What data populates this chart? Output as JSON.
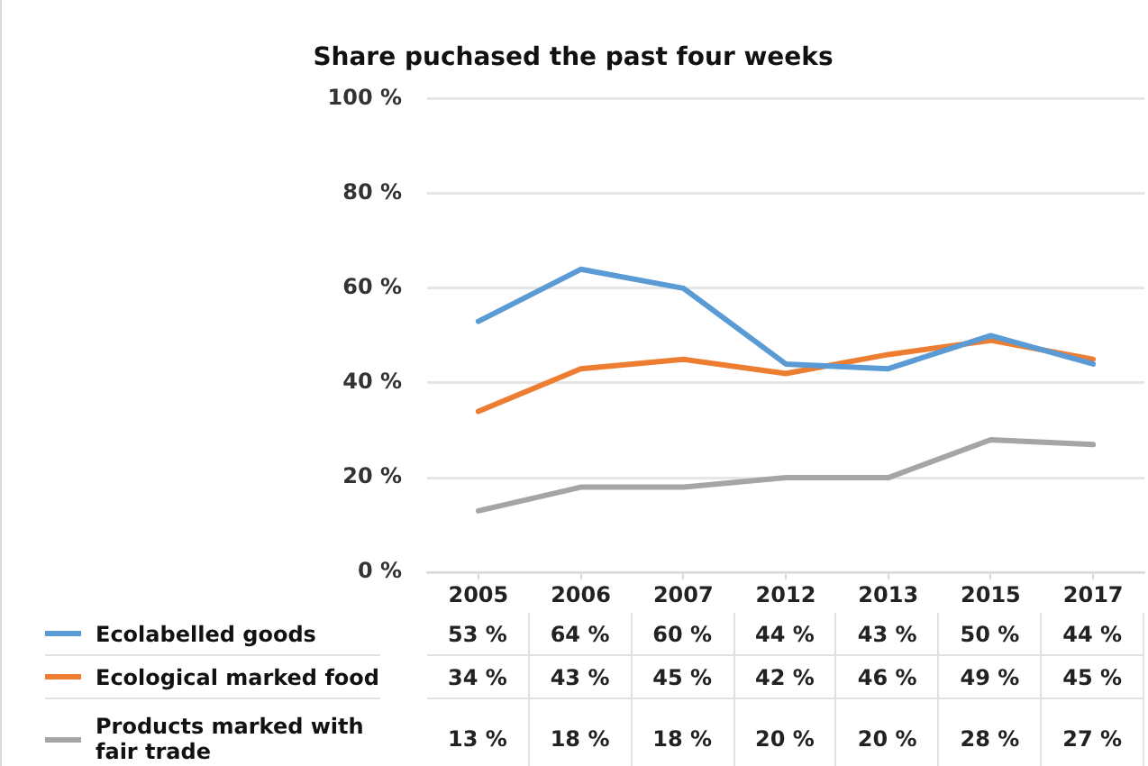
{
  "chart_data": {
    "type": "line",
    "title": "Share puchased the past four weeks",
    "categories": [
      "2005",
      "2006",
      "2007",
      "2012",
      "2013",
      "2015",
      "2017"
    ],
    "series": [
      {
        "name": "Ecolabelled goods",
        "color": "#5b9bd5",
        "values": [
          53,
          64,
          60,
          44,
          43,
          50,
          44
        ],
        "value_labels": [
          "53 %",
          "64 %",
          "60 %",
          "44 %",
          "43 %",
          "50 %",
          "44 %"
        ]
      },
      {
        "name": "Ecological marked food",
        "color": "#ed7d31",
        "values": [
          34,
          43,
          45,
          42,
          46,
          49,
          45
        ],
        "value_labels": [
          "34 %",
          "43 %",
          "45 %",
          "42 %",
          "46 %",
          "49 %",
          "45 %"
        ]
      },
      {
        "name": "Products marked with fair trade",
        "color": "#a5a5a5",
        "values": [
          13,
          18,
          18,
          20,
          20,
          28,
          27
        ],
        "value_labels": [
          "13 %",
          "18 %",
          "18 %",
          "20 %",
          "20 %",
          "28 %",
          "27 %"
        ]
      }
    ],
    "ylim": [
      0,
      100
    ],
    "yticks": [
      {
        "value": 0,
        "label": "0 %"
      },
      {
        "value": 20,
        "label": "20 %"
      },
      {
        "value": 40,
        "label": "40 %"
      },
      {
        "value": 60,
        "label": "60 %"
      },
      {
        "value": 80,
        "label": "80 %"
      },
      {
        "value": 100,
        "label": "100 %"
      }
    ],
    "grid": "y",
    "legend": "bottom"
  }
}
